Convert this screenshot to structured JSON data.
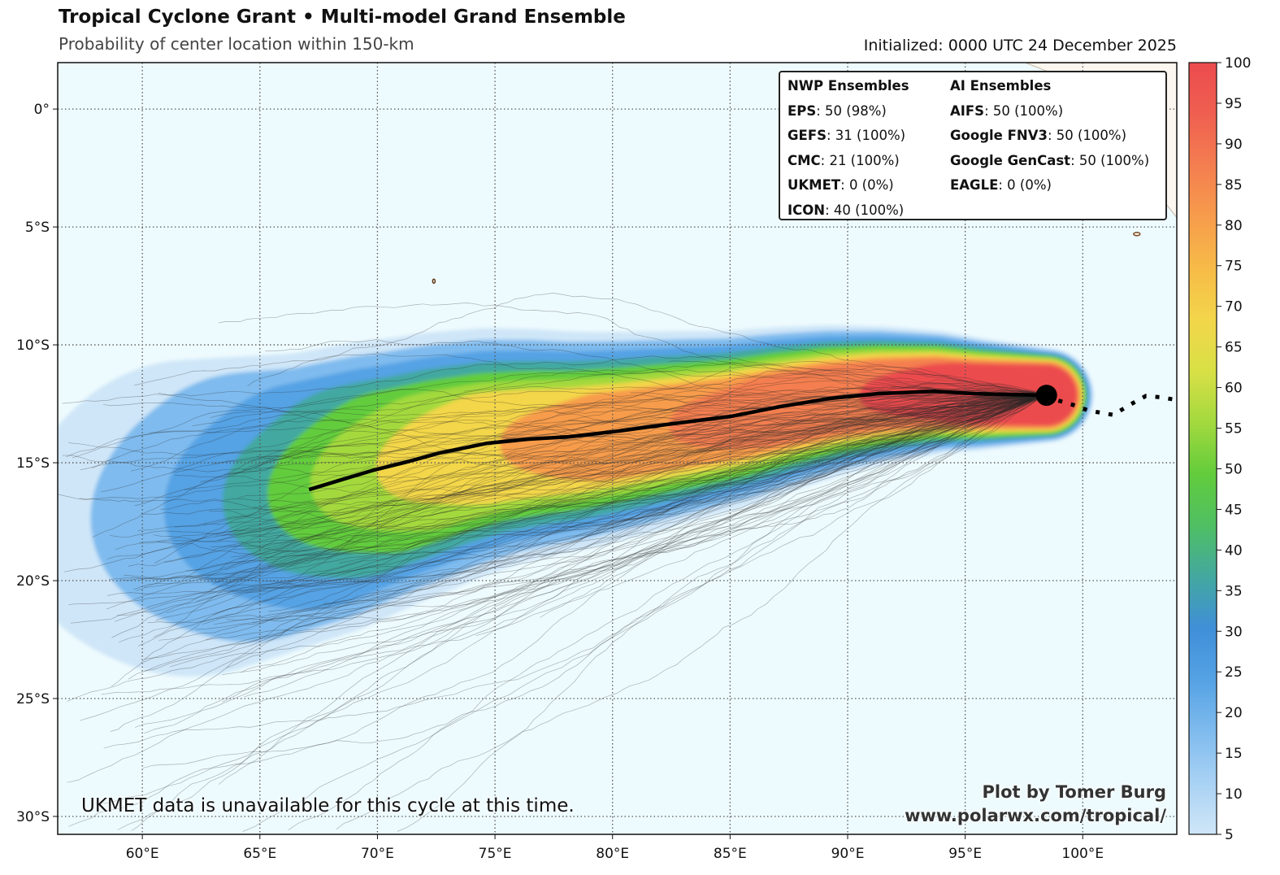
{
  "header": {
    "title": "Tropical Cyclone Grant • Multi-model Grand Ensemble",
    "subtitle": "Probability of center location within 150-km",
    "initialized": "Initialized: 0000 UTC 24 December 2025"
  },
  "legend": {
    "nwp_title": "NWP Ensembles",
    "nwp": [
      {
        "model": "EPS",
        "value": ": 50 (98%)"
      },
      {
        "model": "GEFS",
        "value": ": 31 (100%)"
      },
      {
        "model": "CMC",
        "value": ": 21 (100%)"
      },
      {
        "model": "UKMET",
        "value": ": 0 (0%)"
      },
      {
        "model": "ICON",
        "value": ": 40 (100%)"
      }
    ],
    "ai_title": "AI Ensembles",
    "ai": [
      {
        "model": "AIFS",
        "value": ": 50 (100%)"
      },
      {
        "model": "Google FNV3",
        "value": ": 50 (100%)"
      },
      {
        "model": "Google GenCast",
        "value": ": 50 (100%)"
      },
      {
        "model": "EAGLE",
        "value": ": 0 (0%)"
      }
    ]
  },
  "note": "UKMET data is unavailable for this cycle at this time.",
  "credit": {
    "line1": "Plot by Tomer Burg",
    "line2": "www.polarwx.com/tropical/"
  },
  "chart_data": {
    "type": "heatmap",
    "title": "Tropical Cyclone Grant • Multi-model Grand Ensemble",
    "subtitle": "Probability of center location within 150-km",
    "lon_range": [
      56.4,
      104.0
    ],
    "lat_range": [
      -30.76,
      1.97
    ],
    "x_ticks": [
      60,
      65,
      70,
      75,
      80,
      85,
      90,
      95,
      100
    ],
    "x_tick_labels": [
      "60°E",
      "65°E",
      "70°E",
      "75°E",
      "80°E",
      "85°E",
      "90°E",
      "95°E",
      "100°E"
    ],
    "y_ticks": [
      0,
      -5,
      -10,
      -15,
      -20,
      -25,
      -30
    ],
    "y_tick_labels": [
      "0°",
      "5°S",
      "10°S",
      "15°S",
      "20°S",
      "25°S",
      "30°S"
    ],
    "grid": true,
    "colorbar": {
      "range": [
        5,
        100
      ],
      "ticks": [
        "5",
        "10",
        "15",
        "20",
        "25",
        "30",
        "35",
        "40",
        "45",
        "50",
        "55",
        "60",
        "65",
        "70",
        "75",
        "80",
        "85",
        "90",
        "95",
        "100"
      ],
      "colors": [
        "#cfe6f8",
        "#a9d2f4",
        "#7fbbee",
        "#55a2e4",
        "#3f8fd8",
        "#43a8a0",
        "#4fbf63",
        "#62cc3c",
        "#a3d93e",
        "#d8e046",
        "#f3d64a",
        "#f7bb48",
        "#f79c4c",
        "#f47e50",
        "#ef5f50",
        "#ec4b4e"
      ]
    },
    "mean_track": [
      [
        67.09,
        -16.14
      ],
      [
        68.47,
        -15.72
      ],
      [
        69.85,
        -15.31
      ],
      [
        71.23,
        -14.97
      ],
      [
        72.62,
        -14.59
      ],
      [
        74.69,
        -14.17
      ],
      [
        76.42,
        -14.0
      ],
      [
        78.14,
        -13.9
      ],
      [
        80.22,
        -13.66
      ],
      [
        82.29,
        -13.38
      ],
      [
        85.06,
        -13.03
      ],
      [
        87.13,
        -12.62
      ],
      [
        89.2,
        -12.28
      ],
      [
        91.28,
        -12.07
      ],
      [
        93.69,
        -11.97
      ],
      [
        95.42,
        -12.07
      ],
      [
        98.46,
        -12.14
      ]
    ],
    "past_track": [
      [
        98.46,
        -12.14
      ],
      [
        98.88,
        -12.34
      ],
      [
        99.6,
        -12.55
      ],
      [
        100.26,
        -12.79
      ],
      [
        101.3,
        -12.97
      ],
      [
        101.99,
        -12.55
      ],
      [
        102.68,
        -12.17
      ],
      [
        103.3,
        -12.22
      ],
      [
        104.0,
        -12.34
      ]
    ],
    "current_position": [
      98.46,
      -12.14
    ],
    "probability_bands": [
      {
        "level": 5,
        "west_lon": 58.5
      },
      {
        "level": 15,
        "west_lon": 61
      },
      {
        "level": 25,
        "west_lon": 63.5
      },
      {
        "level": 35,
        "west_lon": 65.5
      },
      {
        "level": 45,
        "west_lon": 67
      },
      {
        "level": 55,
        "west_lon": 68.5
      },
      {
        "level": 65,
        "west_lon": 71
      },
      {
        "level": 75,
        "west_lon": 76
      },
      {
        "level": 85,
        "west_lon": 83
      },
      {
        "level": 95,
        "west_lon": 91
      }
    ]
  }
}
